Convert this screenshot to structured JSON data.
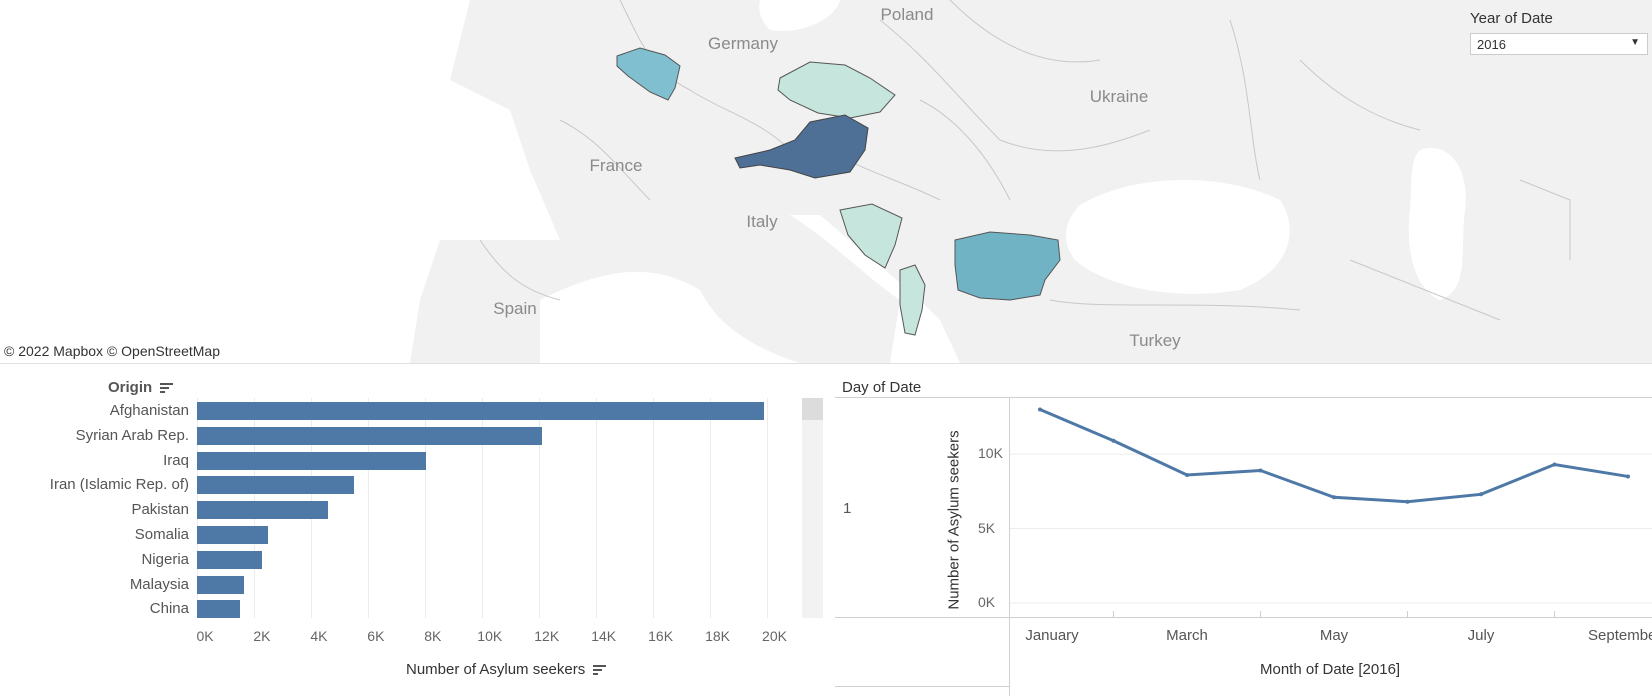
{
  "map": {
    "country_labels": [
      "Poland",
      "Germany",
      "Ukraine",
      "France",
      "Italy",
      "Spain",
      "Turkey"
    ],
    "copyright": "© 2022 Mapbox  © OpenStreetMap",
    "highlighted_countries": [
      {
        "name": "Belgium",
        "color": "#7fbfcf"
      },
      {
        "name": "Czech Republic",
        "color": "#c6e5dd"
      },
      {
        "name": "Austria",
        "color": "#4e6f96"
      },
      {
        "name": "Bosnia and Herzegovina",
        "color": "#c6e5dd"
      },
      {
        "name": "Albania",
        "color": "#c6e5dd"
      },
      {
        "name": "Bulgaria",
        "color": "#6fb3c5"
      }
    ]
  },
  "filter": {
    "label": "Year of Date",
    "selected": "2016"
  },
  "bar_chart": {
    "header": "Origin",
    "xlabel": "Number of Asylum seekers"
  },
  "line_chart": {
    "header": "Day of Date",
    "row_value": "1",
    "ylabel": "Number of Asylum seekers",
    "xlabel": "Month of Date [2016]"
  },
  "chart_data": [
    {
      "type": "bar",
      "orientation": "horizontal",
      "categories": [
        "Afghanistan",
        "Syrian Arab Rep.",
        "Iraq",
        "Iran (Islamic Rep. of)",
        "Pakistan",
        "Somalia",
        "Nigeria",
        "Malaysia",
        "China"
      ],
      "values": [
        19900,
        12100,
        8050,
        5500,
        4600,
        2500,
        2300,
        1650,
        1500
      ],
      "xlabel": "Number of Asylum seekers",
      "ylabel": "Origin",
      "xlim": [
        0,
        21000
      ],
      "xticks": [
        "0K",
        "2K",
        "4K",
        "6K",
        "8K",
        "10K",
        "12K",
        "14K",
        "16K",
        "18K",
        "20K"
      ],
      "color": "#4e79a7"
    },
    {
      "type": "line",
      "x": [
        "January",
        "February",
        "March",
        "April",
        "May",
        "June",
        "July",
        "August",
        "September"
      ],
      "values": [
        13000,
        10900,
        8600,
        8900,
        7100,
        6800,
        7300,
        9300,
        8500
      ],
      "xticks": [
        "January",
        "March",
        "May",
        "July",
        "September"
      ],
      "yticks": [
        "0K",
        "5K",
        "10K"
      ],
      "ylim": [
        0,
        13500
      ],
      "xlabel": "Month of Date [2016]",
      "ylabel": "Number of Asylum seekers",
      "color": "#4e79a7"
    }
  ]
}
